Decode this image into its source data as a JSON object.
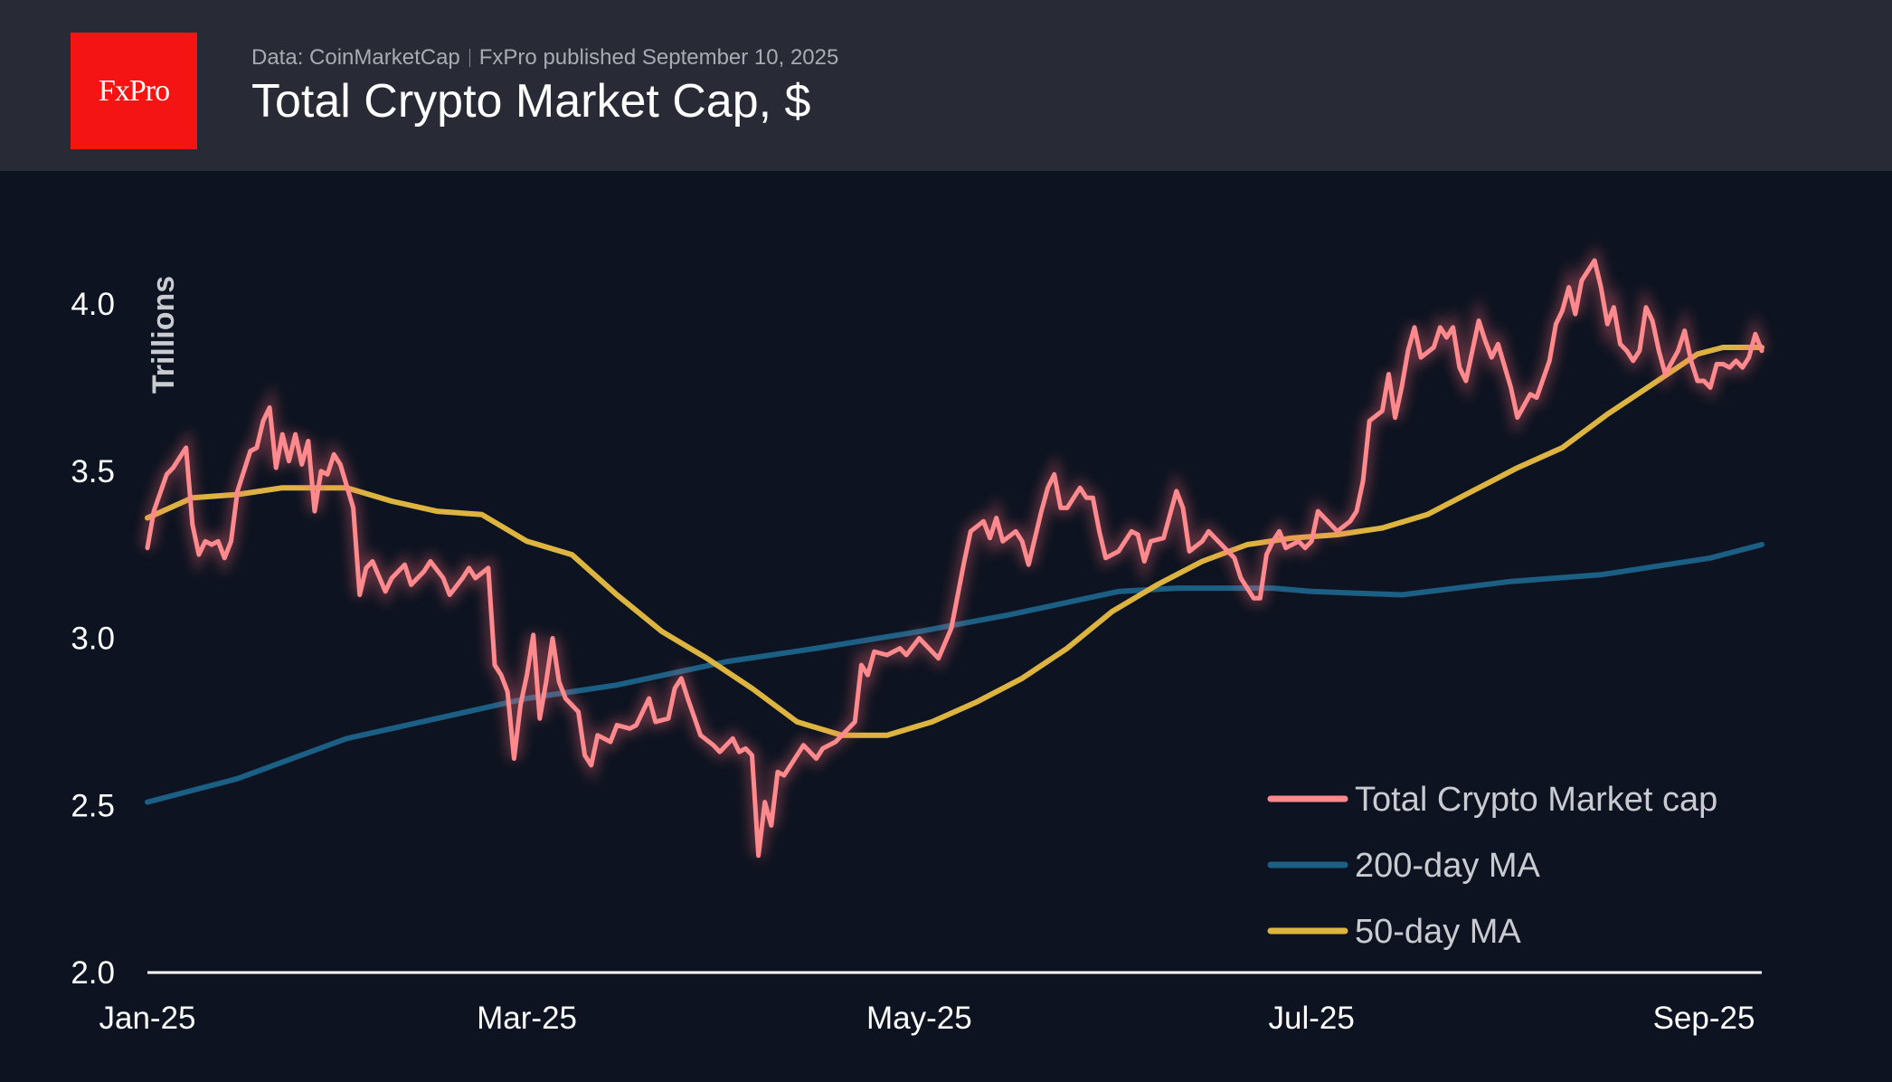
{
  "header": {
    "logo": "FxPro",
    "source": "Data: CoinMarketCap",
    "published": "FxPro published September 10, 2025",
    "title": "Total Crypto Market Cap, $"
  },
  "chart_data": {
    "type": "line",
    "title": "Total Crypto Market Cap, $",
    "ylabel": "Trillions",
    "xlabel": "",
    "ylim": [
      2.0,
      4.2
    ],
    "xlim": [
      "2025-01-01",
      "2025-09-09"
    ],
    "yticks": [
      2.0,
      2.5,
      3.0,
      3.5,
      4.0
    ],
    "ytick_labels": [
      "2.0",
      "2.5",
      "3.0",
      "3.5",
      "4.0"
    ],
    "xticks": [
      "2025-01-01",
      "2025-03-01",
      "2025-05-01",
      "2025-07-01",
      "2025-09-01"
    ],
    "xtick_labels": [
      "Jan-25",
      "Mar-25",
      "May-25",
      "Jul-25",
      "Sep-25"
    ],
    "grid": false,
    "legend_position": "bottom-right",
    "series": [
      {
        "name": "Total Crypto Market cap",
        "color": "#ff8a8e",
        "points": [
          [
            "2025-01-01",
            3.27
          ],
          [
            "2025-01-02",
            3.38
          ],
          [
            "2025-01-04",
            3.49
          ],
          [
            "2025-01-05",
            3.51
          ],
          [
            "2025-01-07",
            3.57
          ],
          [
            "2025-01-08",
            3.34
          ],
          [
            "2025-01-09",
            3.25
          ],
          [
            "2025-01-10",
            3.29
          ],
          [
            "2025-01-11",
            3.28
          ],
          [
            "2025-01-12",
            3.29
          ],
          [
            "2025-01-13",
            3.24
          ],
          [
            "2025-01-14",
            3.29
          ],
          [
            "2025-01-15",
            3.44
          ],
          [
            "2025-01-17",
            3.56
          ],
          [
            "2025-01-18",
            3.57
          ],
          [
            "2025-01-19",
            3.65
          ],
          [
            "2025-01-20",
            3.69
          ],
          [
            "2025-01-21",
            3.51
          ],
          [
            "2025-01-22",
            3.61
          ],
          [
            "2025-01-23",
            3.53
          ],
          [
            "2025-01-24",
            3.61
          ],
          [
            "2025-01-25",
            3.52
          ],
          [
            "2025-01-26",
            3.59
          ],
          [
            "2025-01-27",
            3.38
          ],
          [
            "2025-01-28",
            3.5
          ],
          [
            "2025-01-29",
            3.49
          ],
          [
            "2025-01-30",
            3.55
          ],
          [
            "2025-01-31",
            3.52
          ],
          [
            "2025-02-02",
            3.39
          ],
          [
            "2025-02-03",
            3.13
          ],
          [
            "2025-02-04",
            3.21
          ],
          [
            "2025-02-05",
            3.23
          ],
          [
            "2025-02-07",
            3.14
          ],
          [
            "2025-02-08",
            3.18
          ],
          [
            "2025-02-10",
            3.22
          ],
          [
            "2025-02-11",
            3.16
          ],
          [
            "2025-02-13",
            3.2
          ],
          [
            "2025-02-14",
            3.23
          ],
          [
            "2025-02-16",
            3.18
          ],
          [
            "2025-02-17",
            3.13
          ],
          [
            "2025-02-19",
            3.18
          ],
          [
            "2025-02-20",
            3.21
          ],
          [
            "2025-02-21",
            3.18
          ],
          [
            "2025-02-23",
            3.21
          ],
          [
            "2025-02-24",
            2.92
          ],
          [
            "2025-02-25",
            2.89
          ],
          [
            "2025-02-26",
            2.84
          ],
          [
            "2025-02-27",
            2.64
          ],
          [
            "2025-02-28",
            2.8
          ],
          [
            "2025-03-01",
            2.89
          ],
          [
            "2025-03-02",
            3.01
          ],
          [
            "2025-03-03",
            2.76
          ],
          [
            "2025-03-04",
            2.87
          ],
          [
            "2025-03-05",
            3.0
          ],
          [
            "2025-03-06",
            2.87
          ],
          [
            "2025-03-07",
            2.82
          ],
          [
            "2025-03-09",
            2.78
          ],
          [
            "2025-03-10",
            2.65
          ],
          [
            "2025-03-11",
            2.62
          ],
          [
            "2025-03-12",
            2.71
          ],
          [
            "2025-03-14",
            2.69
          ],
          [
            "2025-03-15",
            2.74
          ],
          [
            "2025-03-17",
            2.73
          ],
          [
            "2025-03-18",
            2.74
          ],
          [
            "2025-03-20",
            2.82
          ],
          [
            "2025-03-21",
            2.75
          ],
          [
            "2025-03-23",
            2.76
          ],
          [
            "2025-03-24",
            2.85
          ],
          [
            "2025-03-25",
            2.88
          ],
          [
            "2025-03-26",
            2.82
          ],
          [
            "2025-03-28",
            2.71
          ],
          [
            "2025-03-30",
            2.68
          ],
          [
            "2025-03-31",
            2.66
          ],
          [
            "2025-04-02",
            2.7
          ],
          [
            "2025-04-03",
            2.66
          ],
          [
            "2025-04-04",
            2.67
          ],
          [
            "2025-04-05",
            2.65
          ],
          [
            "2025-04-06",
            2.35
          ],
          [
            "2025-04-07",
            2.51
          ],
          [
            "2025-04-08",
            2.44
          ],
          [
            "2025-04-09",
            2.6
          ],
          [
            "2025-04-10",
            2.59
          ],
          [
            "2025-04-12",
            2.65
          ],
          [
            "2025-04-13",
            2.68
          ],
          [
            "2025-04-15",
            2.64
          ],
          [
            "2025-04-16",
            2.67
          ],
          [
            "2025-04-18",
            2.69
          ],
          [
            "2025-04-19",
            2.71
          ],
          [
            "2025-04-21",
            2.75
          ],
          [
            "2025-04-22",
            2.92
          ],
          [
            "2025-04-23",
            2.89
          ],
          [
            "2025-04-24",
            2.96
          ],
          [
            "2025-04-26",
            2.95
          ],
          [
            "2025-04-28",
            2.97
          ],
          [
            "2025-04-29",
            2.95
          ],
          [
            "2025-05-01",
            3.0
          ],
          [
            "2025-05-03",
            2.96
          ],
          [
            "2025-05-04",
            2.94
          ],
          [
            "2025-05-06",
            3.03
          ],
          [
            "2025-05-08",
            3.23
          ],
          [
            "2025-05-09",
            3.32
          ],
          [
            "2025-05-11",
            3.35
          ],
          [
            "2025-05-12",
            3.3
          ],
          [
            "2025-05-13",
            3.36
          ],
          [
            "2025-05-14",
            3.29
          ],
          [
            "2025-05-16",
            3.32
          ],
          [
            "2025-05-17",
            3.29
          ],
          [
            "2025-05-18",
            3.22
          ],
          [
            "2025-05-20",
            3.38
          ],
          [
            "2025-05-21",
            3.45
          ],
          [
            "2025-05-22",
            3.49
          ],
          [
            "2025-05-23",
            3.39
          ],
          [
            "2025-05-24",
            3.39
          ],
          [
            "2025-05-26",
            3.45
          ],
          [
            "2025-05-27",
            3.42
          ],
          [
            "2025-05-28",
            3.42
          ],
          [
            "2025-05-29",
            3.32
          ],
          [
            "2025-05-30",
            3.24
          ],
          [
            "2025-06-01",
            3.26
          ],
          [
            "2025-06-03",
            3.32
          ],
          [
            "2025-06-04",
            3.31
          ],
          [
            "2025-06-05",
            3.23
          ],
          [
            "2025-06-06",
            3.29
          ],
          [
            "2025-06-08",
            3.3
          ],
          [
            "2025-06-10",
            3.44
          ],
          [
            "2025-06-11",
            3.39
          ],
          [
            "2025-06-12",
            3.26
          ],
          [
            "2025-06-14",
            3.29
          ],
          [
            "2025-06-15",
            3.32
          ],
          [
            "2025-06-16",
            3.3
          ],
          [
            "2025-06-18",
            3.26
          ],
          [
            "2025-06-19",
            3.24
          ],
          [
            "2025-06-20",
            3.18
          ],
          [
            "2025-06-22",
            3.12
          ],
          [
            "2025-06-23",
            3.12
          ],
          [
            "2025-06-24",
            3.25
          ],
          [
            "2025-06-25",
            3.29
          ],
          [
            "2025-06-26",
            3.32
          ],
          [
            "2025-06-27",
            3.27
          ],
          [
            "2025-06-29",
            3.29
          ],
          [
            "2025-06-30",
            3.27
          ],
          [
            "2025-07-01",
            3.29
          ],
          [
            "2025-07-02",
            3.38
          ],
          [
            "2025-07-04",
            3.34
          ],
          [
            "2025-07-05",
            3.32
          ],
          [
            "2025-07-07",
            3.35
          ],
          [
            "2025-07-08",
            3.38
          ],
          [
            "2025-07-09",
            3.47
          ],
          [
            "2025-07-10",
            3.65
          ],
          [
            "2025-07-12",
            3.68
          ],
          [
            "2025-07-13",
            3.79
          ],
          [
            "2025-07-14",
            3.66
          ],
          [
            "2025-07-15",
            3.75
          ],
          [
            "2025-07-16",
            3.86
          ],
          [
            "2025-07-17",
            3.93
          ],
          [
            "2025-07-18",
            3.84
          ],
          [
            "2025-07-20",
            3.87
          ],
          [
            "2025-07-21",
            3.93
          ],
          [
            "2025-07-22",
            3.9
          ],
          [
            "2025-07-23",
            3.93
          ],
          [
            "2025-07-24",
            3.81
          ],
          [
            "2025-07-25",
            3.77
          ],
          [
            "2025-07-26",
            3.86
          ],
          [
            "2025-07-27",
            3.95
          ],
          [
            "2025-07-28",
            3.89
          ],
          [
            "2025-07-29",
            3.84
          ],
          [
            "2025-07-30",
            3.88
          ],
          [
            "2025-08-01",
            3.75
          ],
          [
            "2025-08-02",
            3.66
          ],
          [
            "2025-08-04",
            3.73
          ],
          [
            "2025-08-05",
            3.72
          ],
          [
            "2025-08-07",
            3.83
          ],
          [
            "2025-08-08",
            3.94
          ],
          [
            "2025-08-09",
            3.98
          ],
          [
            "2025-08-10",
            4.05
          ],
          [
            "2025-08-11",
            3.97
          ],
          [
            "2025-08-12",
            4.07
          ],
          [
            "2025-08-14",
            4.13
          ],
          [
            "2025-08-15",
            4.05
          ],
          [
            "2025-08-16",
            3.94
          ],
          [
            "2025-08-17",
            3.99
          ],
          [
            "2025-08-18",
            3.88
          ],
          [
            "2025-08-19",
            3.86
          ],
          [
            "2025-08-20",
            3.83
          ],
          [
            "2025-08-21",
            3.86
          ],
          [
            "2025-08-22",
            3.99
          ],
          [
            "2025-08-23",
            3.95
          ],
          [
            "2025-08-24",
            3.86
          ],
          [
            "2025-08-25",
            3.79
          ],
          [
            "2025-08-27",
            3.86
          ],
          [
            "2025-08-28",
            3.92
          ],
          [
            "2025-08-29",
            3.83
          ],
          [
            "2025-08-30",
            3.77
          ],
          [
            "2025-08-31",
            3.77
          ],
          [
            "2025-09-01",
            3.75
          ],
          [
            "2025-09-02",
            3.82
          ],
          [
            "2025-09-03",
            3.82
          ],
          [
            "2025-09-04",
            3.81
          ],
          [
            "2025-09-05",
            3.83
          ],
          [
            "2025-09-06",
            3.81
          ],
          [
            "2025-09-07",
            3.84
          ],
          [
            "2025-09-08",
            3.91
          ],
          [
            "2025-09-09",
            3.86
          ]
        ]
      },
      {
        "name": "200-day MA",
        "color": "#1b5f85",
        "points": [
          [
            "2025-01-01",
            2.51
          ],
          [
            "2025-01-15",
            2.58
          ],
          [
            "2025-02-01",
            2.7
          ],
          [
            "2025-02-15",
            2.76
          ],
          [
            "2025-03-01",
            2.82
          ],
          [
            "2025-03-15",
            2.86
          ],
          [
            "2025-04-01",
            2.93
          ],
          [
            "2025-04-15",
            2.97
          ],
          [
            "2025-05-01",
            3.02
          ],
          [
            "2025-05-15",
            3.07
          ],
          [
            "2025-06-01",
            3.14
          ],
          [
            "2025-06-10",
            3.15
          ],
          [
            "2025-06-25",
            3.15
          ],
          [
            "2025-07-01",
            3.14
          ],
          [
            "2025-07-15",
            3.13
          ],
          [
            "2025-08-01",
            3.17
          ],
          [
            "2025-08-15",
            3.19
          ],
          [
            "2025-09-01",
            3.24
          ],
          [
            "2025-09-09",
            3.28
          ]
        ]
      },
      {
        "name": "50-day MA",
        "color": "#dcb43f",
        "points": [
          [
            "2025-01-01",
            3.36
          ],
          [
            "2025-01-08",
            3.42
          ],
          [
            "2025-01-15",
            3.43
          ],
          [
            "2025-01-22",
            3.45
          ],
          [
            "2025-02-01",
            3.45
          ],
          [
            "2025-02-08",
            3.41
          ],
          [
            "2025-02-15",
            3.38
          ],
          [
            "2025-02-22",
            3.37
          ],
          [
            "2025-03-01",
            3.29
          ],
          [
            "2025-03-08",
            3.25
          ],
          [
            "2025-03-15",
            3.13
          ],
          [
            "2025-03-22",
            3.02
          ],
          [
            "2025-03-29",
            2.94
          ],
          [
            "2025-04-05",
            2.85
          ],
          [
            "2025-04-12",
            2.75
          ],
          [
            "2025-04-19",
            2.71
          ],
          [
            "2025-04-26",
            2.71
          ],
          [
            "2025-05-03",
            2.75
          ],
          [
            "2025-05-10",
            2.81
          ],
          [
            "2025-05-17",
            2.88
          ],
          [
            "2025-05-24",
            2.97
          ],
          [
            "2025-05-31",
            3.08
          ],
          [
            "2025-06-07",
            3.16
          ],
          [
            "2025-06-14",
            3.23
          ],
          [
            "2025-06-21",
            3.28
          ],
          [
            "2025-06-28",
            3.3
          ],
          [
            "2025-07-05",
            3.31
          ],
          [
            "2025-07-12",
            3.33
          ],
          [
            "2025-07-19",
            3.37
          ],
          [
            "2025-07-26",
            3.44
          ],
          [
            "2025-08-02",
            3.51
          ],
          [
            "2025-08-09",
            3.57
          ],
          [
            "2025-08-16",
            3.67
          ],
          [
            "2025-08-23",
            3.76
          ],
          [
            "2025-08-30",
            3.85
          ],
          [
            "2025-09-03",
            3.87
          ],
          [
            "2025-09-09",
            3.87
          ]
        ]
      }
    ]
  }
}
